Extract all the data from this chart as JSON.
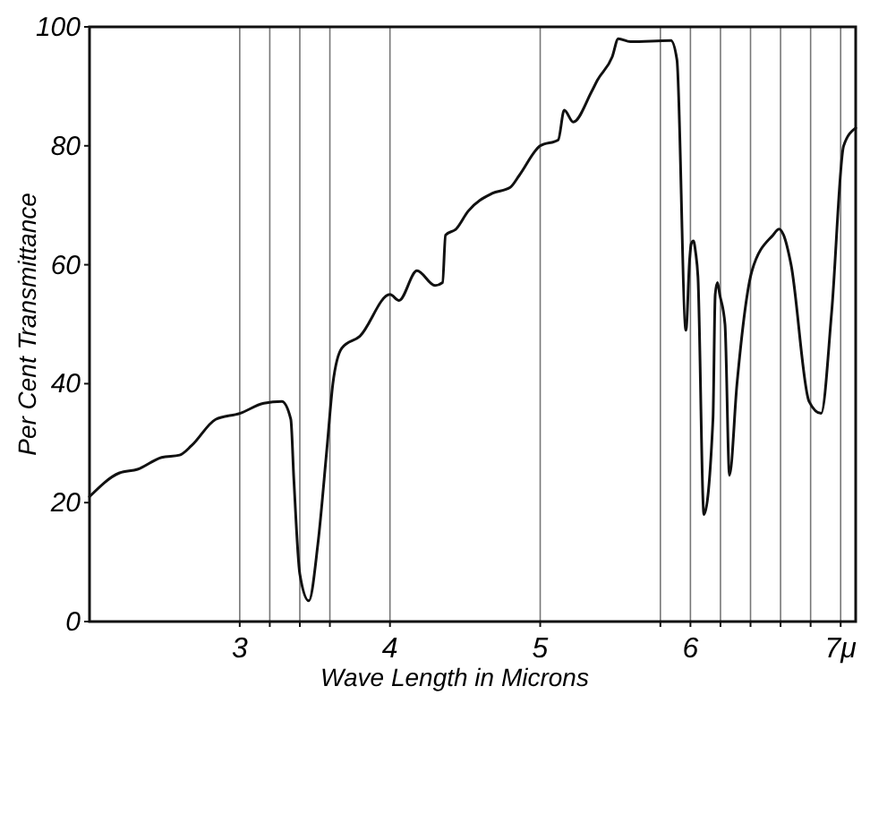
{
  "chart_data": {
    "type": "line",
    "xlabel": "Wave Length in Microns",
    "ylabel": "Per Cent Transmittance",
    "x": [
      2.0,
      2.2,
      2.32,
      2.48,
      2.6,
      2.68,
      2.84,
      3.0,
      3.16,
      3.28,
      3.34,
      3.36,
      3.4,
      3.46,
      3.52,
      3.58,
      3.62,
      3.68,
      3.8,
      4.0,
      4.06,
      4.18,
      4.3,
      4.35,
      4.37,
      4.44,
      4.52,
      4.68,
      4.8,
      4.86,
      5.0,
      5.12,
      5.16,
      5.22,
      5.34,
      5.38,
      5.48,
      5.52,
      5.6,
      5.87,
      5.91,
      5.97,
      5.995,
      6.005,
      6.02,
      6.035,
      6.05,
      6.09,
      6.15,
      6.165,
      6.18,
      6.195,
      6.23,
      6.26,
      6.31,
      6.41,
      6.55,
      6.59,
      6.62,
      6.67,
      6.79,
      6.87,
      6.94,
      7.02,
      7.1
    ],
    "series": [
      {
        "color": "#111111",
        "values": [
          21,
          25,
          25.6,
          27.6,
          28,
          29.6,
          34,
          35,
          36.7,
          37,
          34,
          24,
          8,
          3.5,
          13,
          29,
          40,
          46,
          48,
          55,
          54,
          59,
          56.5,
          57,
          65,
          66,
          69,
          72,
          73,
          75,
          80,
          81,
          86,
          84,
          89,
          91,
          95,
          98,
          97.5,
          97.7,
          94.5,
          49,
          61,
          63.5,
          64,
          62,
          58,
          18,
          34,
          55,
          57,
          55,
          50,
          24.6,
          40,
          59,
          65,
          66,
          65,
          60,
          37,
          35,
          52,
          80,
          83
        ]
      }
    ],
    "xlim": [
      2,
      7.1
    ],
    "ylim": [
      0,
      100
    ],
    "xticks": [
      3,
      {
        "value": 3.2,
        "label": null
      },
      {
        "value": 3.4,
        "label": null
      },
      {
        "value": 3.6,
        "label": null
      },
      4,
      5,
      {
        "value": 5.8,
        "label": null
      },
      6,
      {
        "value": 6.2,
        "label": null
      },
      {
        "value": 6.4,
        "label": null
      },
      {
        "value": 6.6,
        "label": null
      },
      {
        "value": 6.8,
        "label": null
      },
      {
        "value": 7,
        "label": "7μ"
      }
    ],
    "yticks": [
      0,
      20,
      40,
      60,
      80,
      100
    ],
    "grid": "x",
    "marker": "none",
    "line_style": "solid"
  }
}
